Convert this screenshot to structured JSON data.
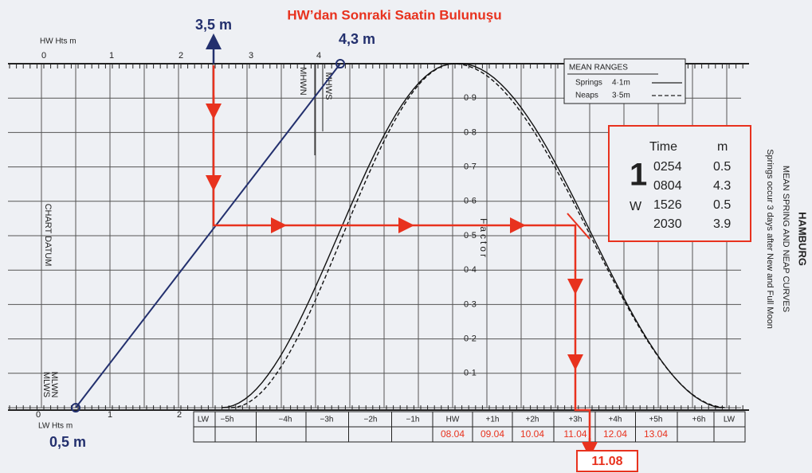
{
  "title": "HW’dan Sonraki Saatin Bulunuşu",
  "annotations": {
    "hw_height": "3,5 m",
    "mhws_height": "4,3 m",
    "lw_height": "0,5 m",
    "result": "11.08"
  },
  "hw_scale": {
    "label": "HW Hts m",
    "ticks": [
      "0",
      "1",
      "2",
      "3",
      "4"
    ]
  },
  "lw_scale": {
    "label": "LW Hts m",
    "ticks": [
      "0",
      "1",
      "2"
    ]
  },
  "levels": {
    "mhws": "MHWS",
    "mhwn": "MHWN",
    "datum": "CHART DATUM",
    "mlwn": "MLWN",
    "mlws": "MLWS"
  },
  "factor": {
    "label": "Factor",
    "ticks": [
      "0·9",
      "0·8",
      "0·7",
      "0·6",
      "0·5",
      "0·4",
      "0·3",
      "0·2",
      "0·1"
    ]
  },
  "hours": [
    "LW",
    "−5h",
    "−4h",
    "−3h",
    "−2h",
    "−1h",
    "HW",
    "+1h",
    "+2h",
    "+3h",
    "+4h",
    "+5h",
    "+6h",
    "LW"
  ],
  "times": [
    "08.04",
    "09.04",
    "10.04",
    "11.04",
    "12.04",
    "13.04"
  ],
  "legend": {
    "title": "MEAN RANGES",
    "items": [
      {
        "name": "Springs",
        "range": "4·1m"
      },
      {
        "name": "Neaps",
        "range": "3·5m"
      }
    ]
  },
  "tide_table": {
    "headers": [
      "Time",
      "m"
    ],
    "day": "1",
    "weekday": "W",
    "rows": [
      [
        "0254",
        "0.5"
      ],
      [
        "0804",
        "4.3"
      ],
      [
        "1526",
        "0.5"
      ],
      [
        "2030",
        "3.9"
      ]
    ]
  },
  "side": {
    "port": "HAMBURG",
    "subtitle": "MEAN SPRING AND NEAP CURVES",
    "note": "Springs occur 3 days after New and Full Moon"
  }
}
